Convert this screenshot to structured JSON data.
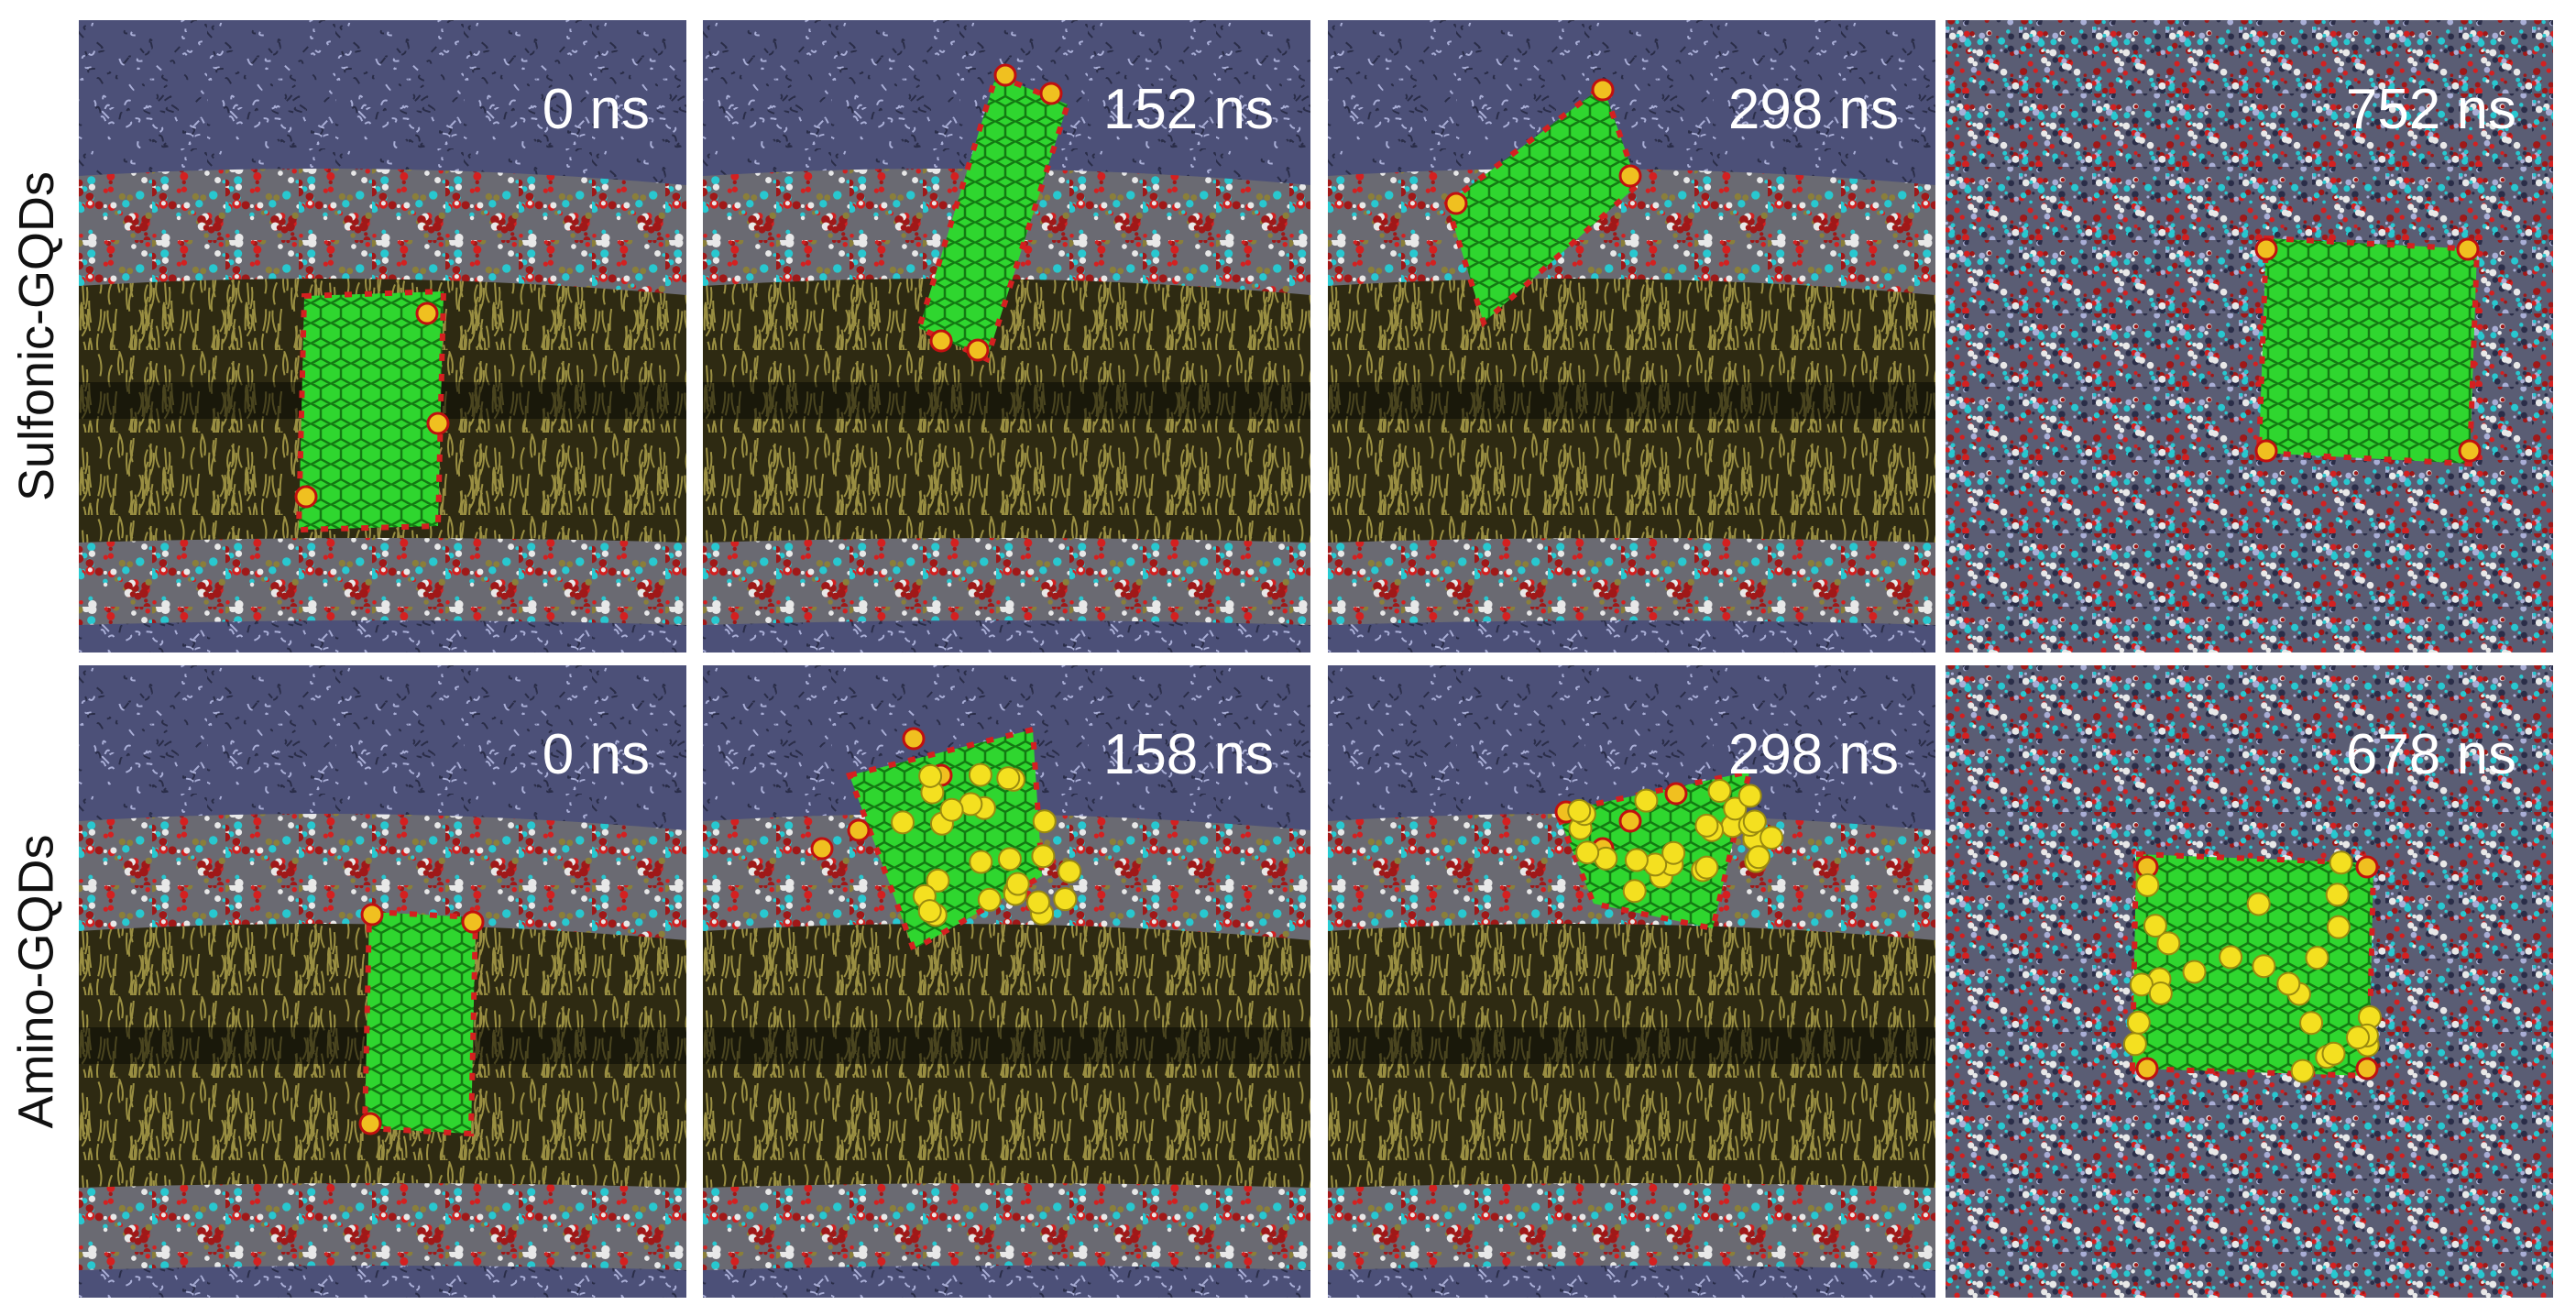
{
  "rows": [
    {
      "label": "Sulfonic-GQDs",
      "panels": [
        {
          "time": "0 ns"
        },
        {
          "time": "152 ns"
        },
        {
          "time": "298 ns"
        },
        {
          "time": "752 ns"
        }
      ]
    },
    {
      "label": "Amino-GQDs",
      "panels": [
        {
          "time": "0 ns"
        },
        {
          "time": "158 ns"
        },
        {
          "time": "298 ns"
        },
        {
          "time": "678 ns"
        }
      ]
    }
  ]
}
